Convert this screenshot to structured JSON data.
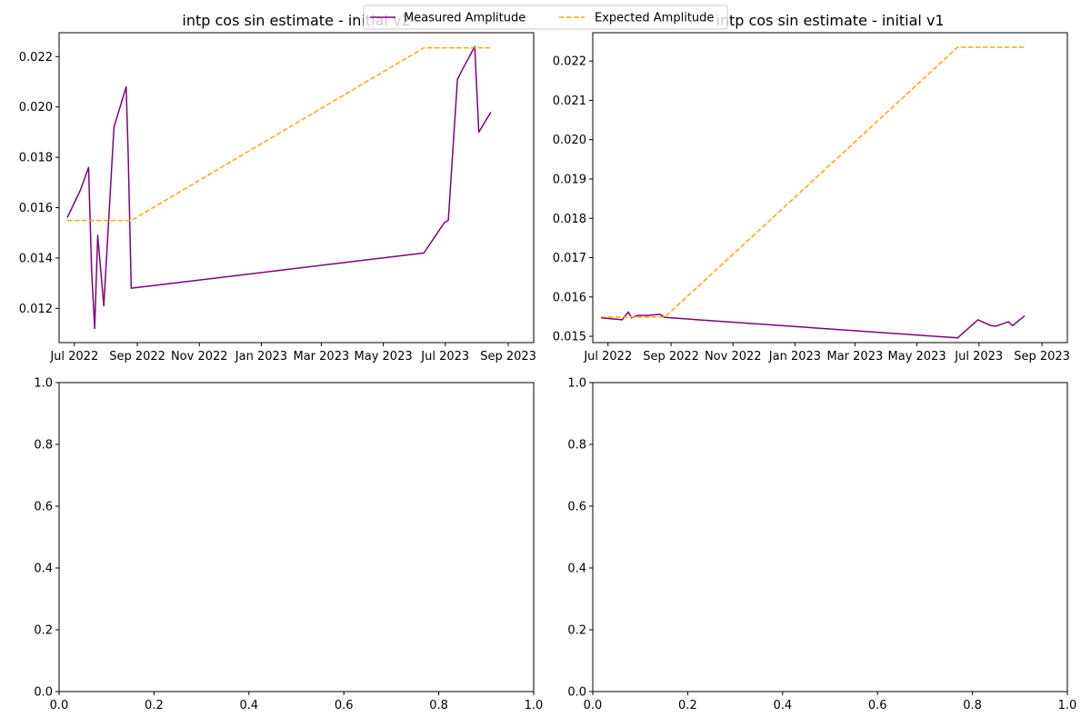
{
  "legend": {
    "entries": [
      {
        "label": "Measured Amplitude",
        "color": "#800080",
        "style": "solid"
      },
      {
        "label": "Expected Amplitude",
        "color": "#ffa500",
        "style": "dashed"
      }
    ],
    "placement": "top-center"
  },
  "chart_data": [
    {
      "type": "line",
      "title": "intp cos sin estimate - initial v2",
      "xlabel": "",
      "ylabel": "",
      "x_axis_type": "date",
      "xlim": [
        "2022-06-16",
        "2023-09-26"
      ],
      "ylim": [
        0.01064,
        0.02295
      ],
      "x_tick_labels": [
        "Jul 2022",
        "Sep 2022",
        "Nov 2022",
        "Jan 2023",
        "Mar 2023",
        "May 2023",
        "Jul 2023",
        "Sep 2023"
      ],
      "x_ticks": [
        "2022-07-01",
        "2022-09-01",
        "2022-11-01",
        "2023-01-01",
        "2023-03-01",
        "2023-05-01",
        "2023-07-01",
        "2023-09-01"
      ],
      "y_ticks": [
        0.012,
        0.014,
        0.016,
        0.018,
        0.02,
        0.022
      ],
      "y_tick_labels": [
        "0.012",
        "0.014",
        "0.016",
        "0.018",
        "0.020",
        "0.022"
      ],
      "grid": false,
      "series": [
        {
          "name": "Measured Amplitude",
          "color": "#800080",
          "style": "solid",
          "x": [
            "2022-06-24",
            "2022-07-07",
            "2022-07-15",
            "2022-07-18",
            "2022-07-21",
            "2022-07-24",
            "2022-07-30",
            "2022-08-09",
            "2022-08-21",
            "2022-08-23",
            "2022-08-26",
            "2023-06-10",
            "2023-06-30",
            "2023-07-04",
            "2023-07-13",
            "2023-07-18",
            "2023-07-30",
            "2023-08-03",
            "2023-08-15"
          ],
          "y": [
            0.0156,
            0.0167,
            0.0176,
            0.0135,
            0.0112,
            0.0149,
            0.0121,
            0.0192,
            0.0208,
            0.0181,
            0.0128,
            0.0142,
            0.0154,
            0.0155,
            0.0211,
            0.0215,
            0.0224,
            0.019,
            0.0198
          ]
        },
        {
          "name": "Expected Amplitude",
          "color": "#ffa500",
          "style": "dashed",
          "x": [
            "2022-06-24",
            "2022-08-26",
            "2023-06-10",
            "2023-08-15"
          ],
          "y": [
            0.01549,
            0.01549,
            0.02235,
            0.02235
          ]
        }
      ]
    },
    {
      "type": "line",
      "title": "intp cos sin estimate - initial v1",
      "xlabel": "",
      "ylabel": "",
      "x_axis_type": "date",
      "xlim": [
        "2022-06-16",
        "2023-09-26"
      ],
      "ylim": [
        0.01484,
        0.02272
      ],
      "x_tick_labels": [
        "Jul 2022",
        "Sep 2022",
        "Nov 2022",
        "Jan 2023",
        "Mar 2023",
        "May 2023",
        "Jul 2023",
        "Sep 2023"
      ],
      "x_ticks": [
        "2022-07-01",
        "2022-09-01",
        "2022-11-01",
        "2023-01-01",
        "2023-03-01",
        "2023-05-01",
        "2023-07-01",
        "2023-09-01"
      ],
      "y_ticks": [
        0.015,
        0.016,
        0.017,
        0.018,
        0.019,
        0.02,
        0.021,
        0.022
      ],
      "y_tick_labels": [
        "0.015",
        "0.016",
        "0.017",
        "0.018",
        "0.019",
        "0.020",
        "0.021",
        "0.022"
      ],
      "grid": false,
      "series": [
        {
          "name": "Measured Amplitude",
          "color": "#800080",
          "style": "solid",
          "x": [
            "2022-06-24",
            "2022-07-15",
            "2022-07-21",
            "2022-07-24",
            "2022-07-30",
            "2022-08-09",
            "2022-08-21",
            "2022-08-26",
            "2023-06-10",
            "2023-06-30",
            "2023-07-13",
            "2023-07-18",
            "2023-07-30",
            "2023-08-03",
            "2023-08-15"
          ],
          "y": [
            0.01547,
            0.01542,
            0.01562,
            0.01547,
            0.01553,
            0.01553,
            0.01556,
            0.01548,
            0.01496,
            0.01542,
            0.01527,
            0.01526,
            0.01537,
            0.01527,
            0.01552
          ]
        },
        {
          "name": "Expected Amplitude",
          "color": "#ffa500",
          "style": "dashed",
          "x": [
            "2022-06-24",
            "2022-08-26",
            "2023-06-10",
            "2023-08-15"
          ],
          "y": [
            0.01549,
            0.01549,
            0.02235,
            0.02235
          ]
        }
      ]
    },
    {
      "type": "line",
      "title": "",
      "xlabel": "",
      "ylabel": "",
      "xlim": [
        0,
        1
      ],
      "ylim": [
        0,
        1
      ],
      "x_ticks": [
        0,
        0.2,
        0.4,
        0.6,
        0.8,
        1
      ],
      "x_tick_labels": [
        "0.0",
        "0.2",
        "0.4",
        "0.6",
        "0.8",
        "1.0"
      ],
      "y_ticks": [
        0,
        0.2,
        0.4,
        0.6,
        0.8,
        1
      ],
      "y_tick_labels": [
        "0.0",
        "0.2",
        "0.4",
        "0.6",
        "0.8",
        "1.0"
      ],
      "grid": false,
      "series": []
    },
    {
      "type": "line",
      "title": "",
      "xlabel": "",
      "ylabel": "",
      "xlim": [
        0,
        1
      ],
      "ylim": [
        0,
        1
      ],
      "x_ticks": [
        0,
        0.2,
        0.4,
        0.6,
        0.8,
        1
      ],
      "x_tick_labels": [
        "0.0",
        "0.2",
        "0.4",
        "0.6",
        "0.8",
        "1.0"
      ],
      "y_ticks": [
        0,
        0.2,
        0.4,
        0.6,
        0.8,
        1
      ],
      "y_tick_labels": [
        "0.0",
        "0.2",
        "0.4",
        "0.6",
        "0.8",
        "1.0"
      ],
      "grid": false,
      "series": []
    }
  ]
}
